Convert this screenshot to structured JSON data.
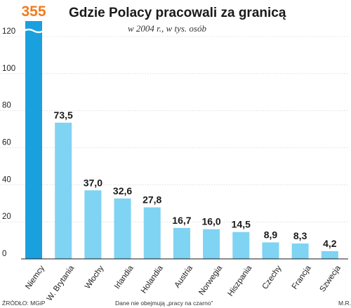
{
  "chart_data": {
    "type": "bar",
    "title": "Gdzie Polacy pracowali za granicą",
    "subtitle": "w 2004 r., w tys. osób",
    "categories": [
      "Niemcy",
      "W. Brytania",
      "Włochy",
      "Irlandia",
      "Holandia",
      "Austria",
      "Norwegia",
      "Hiszpania",
      "Czechy",
      "Francja",
      "Szwecja"
    ],
    "values": [
      355,
      73.5,
      37.0,
      32.6,
      27.8,
      16.7,
      16.0,
      14.5,
      8.9,
      8.3,
      4.2
    ],
    "value_labels": [
      "355",
      "73,5",
      "37,0",
      "32,6",
      "27,8",
      "16,7",
      "16,0",
      "14,5",
      "8,9",
      "8,3",
      "4,2"
    ],
    "ylim": [
      0,
      120
    ],
    "yticks": [
      0,
      20,
      40,
      60,
      80,
      100,
      120
    ],
    "grid": true,
    "highlight_index": 0,
    "colors": {
      "bar": "#7fd3f3",
      "highlight_bar": "#1aa0df",
      "overflow_label": "#f07c1e"
    }
  },
  "footer": {
    "source": "ŹRÓDŁO: MGiP",
    "note": "Dane nie obejmują „pracy na czarno”",
    "author": "M.R."
  }
}
